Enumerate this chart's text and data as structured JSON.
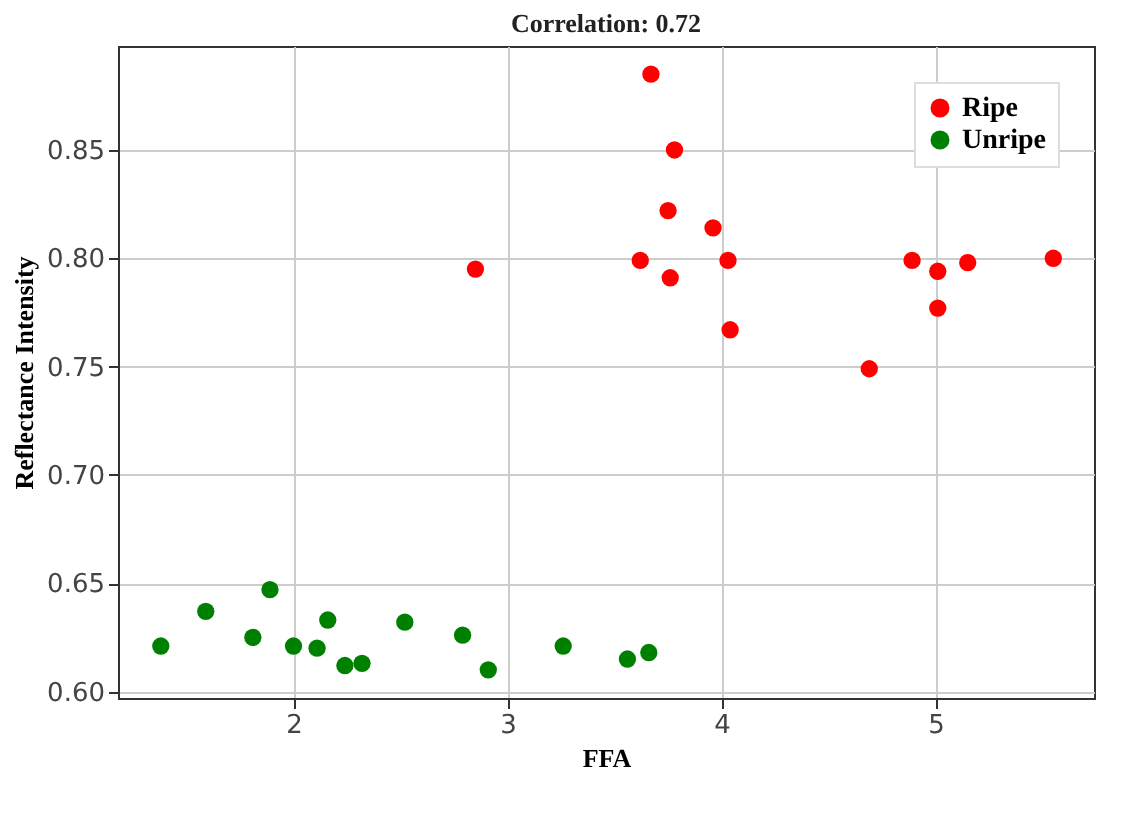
{
  "chart_data": {
    "type": "scatter",
    "title": "Correlation: 0.72",
    "xlabel": "FFA",
    "ylabel": "Reflectance Intensity",
    "xlim": [
      1.18,
      5.74
    ],
    "xticks": [
      2,
      3,
      4,
      5
    ],
    "ylim": [
      0.597,
      0.898
    ],
    "yticks": [
      {
        "value": 0.6,
        "label": "0.60"
      },
      0.65,
      {
        "value": 0.7,
        "label": "0.70"
      },
      0.75,
      {
        "value": 0.8,
        "label": "0.80"
      },
      0.85
    ],
    "grid": true,
    "legend": "top right",
    "marker": "circle",
    "series": [
      {
        "name": "Ripe",
        "color": "#ff0000",
        "x": [
          3.67,
          3.78,
          3.75,
          3.96,
          3.62,
          3.76,
          4.03,
          4.04,
          2.85,
          4.89,
          5.01,
          5.01,
          5.15,
          5.55,
          4.69
        ],
        "values": [
          0.885,
          0.85,
          0.822,
          0.814,
          0.799,
          0.791,
          0.799,
          0.767,
          0.795,
          0.799,
          0.794,
          0.777,
          0.798,
          0.8,
          0.749
        ]
      },
      {
        "name": "Unripe",
        "color": "#008000",
        "x": [
          1.38,
          1.59,
          1.81,
          1.89,
          2.0,
          2.11,
          2.16,
          2.24,
          2.32,
          2.52,
          2.79,
          2.91,
          3.26,
          3.56,
          3.66
        ],
        "values": [
          0.621,
          0.637,
          0.625,
          0.647,
          0.621,
          0.62,
          0.633,
          0.612,
          0.613,
          0.632,
          0.626,
          0.61,
          0.621,
          0.615,
          0.618
        ]
      }
    ]
  }
}
